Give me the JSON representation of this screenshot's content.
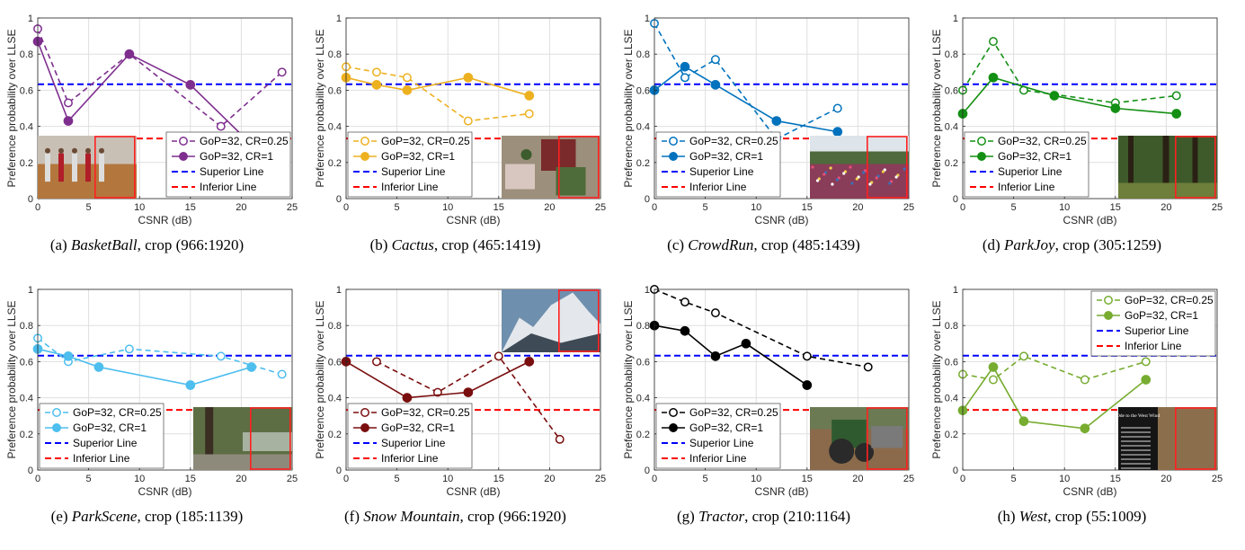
{
  "legend_labels": {
    "series_0.25": "GoP=32, CR=0.25",
    "series_1": "GoP=32, CR=1",
    "superior": "Superior Line",
    "inferior": "Inferior Line"
  },
  "chart_data": [
    {
      "type": "line",
      "caption_prefix": "(a) ",
      "caption_name": "BasketBall",
      "caption_suffix": ", crop (966:1920)",
      "xlabel": "CSNR (dB)",
      "ylabel": "Preference probability over LLSE",
      "xlim": [
        0,
        25
      ],
      "ylim": [
        0,
        1
      ],
      "xticks": [
        0,
        5,
        10,
        15,
        20,
        25
      ],
      "yticks": [
        0,
        0.2,
        0.4,
        0.6,
        0.8,
        1
      ],
      "color": "#7E2F8E",
      "grid": true,
      "legend_position": "bottom-right",
      "superior_line": 0.633,
      "inferior_line": 0.333,
      "series": [
        {
          "cr": "0.25",
          "x": [
            0,
            3,
            9,
            18,
            24
          ],
          "y": [
            0.94,
            0.53,
            0.8,
            0.4,
            0.7
          ]
        },
        {
          "cr": "1",
          "x": [
            0,
            3,
            9,
            15,
            21
          ],
          "y": [
            0.87,
            0.43,
            0.8,
            0.63,
            0.3
          ]
        }
      ],
      "thumb": {
        "scene": "basketball"
      }
    },
    {
      "type": "line",
      "caption_prefix": "(b) ",
      "caption_name": "Cactus",
      "caption_suffix": ", crop (465:1419)",
      "xlabel": "CSNR (dB)",
      "ylabel": "Preference probability over LLSE",
      "xlim": [
        0,
        25
      ],
      "ylim": [
        0,
        1
      ],
      "xticks": [
        0,
        5,
        10,
        15,
        20,
        25
      ],
      "yticks": [
        0,
        0.2,
        0.4,
        0.6,
        0.8,
        1
      ],
      "color": "#EDB120",
      "grid": true,
      "legend_position": "bottom-left",
      "superior_line": 0.633,
      "inferior_line": 0.333,
      "series": [
        {
          "cr": "0.25",
          "x": [
            0,
            3,
            6,
            12,
            18
          ],
          "y": [
            0.73,
            0.7,
            0.67,
            0.43,
            0.47
          ]
        },
        {
          "cr": "1",
          "x": [
            0,
            3,
            6,
            12,
            18
          ],
          "y": [
            0.67,
            0.63,
            0.6,
            0.67,
            0.57
          ]
        }
      ],
      "thumb": {
        "scene": "cactus"
      }
    },
    {
      "type": "line",
      "caption_prefix": "(c) ",
      "caption_name": "CrowdRun",
      "caption_suffix": ", crop (485:1439)",
      "xlabel": "CSNR (dB)",
      "ylabel": "Preference probability over LLSE",
      "xlim": [
        0,
        25
      ],
      "ylim": [
        0,
        1
      ],
      "xticks": [
        0,
        5,
        10,
        15,
        20,
        25
      ],
      "yticks": [
        0,
        0.2,
        0.4,
        0.6,
        0.8,
        1
      ],
      "color": "#0072BD",
      "grid": true,
      "legend_position": "bottom-left",
      "superior_line": 0.633,
      "inferior_line": 0.333,
      "series": [
        {
          "cr": "0.25",
          "x": [
            0,
            3,
            6,
            12,
            18
          ],
          "y": [
            0.97,
            0.67,
            0.77,
            0.33,
            0.5
          ]
        },
        {
          "cr": "1",
          "x": [
            0,
            3,
            6,
            12,
            18
          ],
          "y": [
            0.6,
            0.73,
            0.63,
            0.43,
            0.37
          ]
        }
      ],
      "thumb": {
        "scene": "crowdrun"
      }
    },
    {
      "type": "line",
      "caption_prefix": "(d) ",
      "caption_name": "ParkJoy",
      "caption_suffix": ", crop (305:1259)",
      "xlabel": "CSNR (dB)",
      "ylabel": "Preference probability over LLSE",
      "xlim": [
        0,
        25
      ],
      "ylim": [
        0,
        1
      ],
      "xticks": [
        0,
        5,
        10,
        15,
        20,
        25
      ],
      "yticks": [
        0,
        0.2,
        0.4,
        0.6,
        0.8,
        1
      ],
      "color": "#138F13",
      "grid": true,
      "legend_position": "bottom-left",
      "superior_line": 0.633,
      "inferior_line": 0.333,
      "series": [
        {
          "cr": "0.25",
          "x": [
            0,
            3,
            6,
            15,
            21
          ],
          "y": [
            0.6,
            0.87,
            0.6,
            0.53,
            0.57
          ]
        },
        {
          "cr": "1",
          "x": [
            0,
            3,
            9,
            15,
            21
          ],
          "y": [
            0.47,
            0.67,
            0.57,
            0.5,
            0.47
          ]
        }
      ],
      "thumb": {
        "scene": "parkjoy"
      }
    },
    {
      "type": "line",
      "caption_prefix": "(e) ",
      "caption_name": "ParkScene",
      "caption_suffix": ", crop (185:1139)",
      "xlabel": "CSNR (dB)",
      "ylabel": "Preference probability over LLSE",
      "xlim": [
        0,
        25
      ],
      "ylim": [
        0,
        1
      ],
      "xticks": [
        0,
        5,
        10,
        15,
        20,
        25
      ],
      "yticks": [
        0,
        0.2,
        0.4,
        0.6,
        0.8,
        1
      ],
      "color": "#4DBEEE",
      "grid": true,
      "legend_position": "bottom-left",
      "superior_line": 0.633,
      "inferior_line": 0.333,
      "series": [
        {
          "cr": "0.25",
          "x": [
            0,
            3,
            9,
            18,
            24
          ],
          "y": [
            0.73,
            0.6,
            0.67,
            0.63,
            0.53
          ]
        },
        {
          "cr": "1",
          "x": [
            0,
            3,
            6,
            15,
            21
          ],
          "y": [
            0.67,
            0.63,
            0.57,
            0.47,
            0.57
          ]
        }
      ],
      "thumb": {
        "scene": "parkscene"
      }
    },
    {
      "type": "line",
      "caption_prefix": "(f) ",
      "caption_name": "Snow Mountain",
      "caption_suffix": ", crop (966:1920)",
      "xlabel": "CSNR (dB)",
      "ylabel": "Preference probability over LLSE",
      "xlim": [
        0,
        25
      ],
      "ylim": [
        0,
        1
      ],
      "xticks": [
        0,
        5,
        10,
        15,
        20,
        25
      ],
      "yticks": [
        0,
        0.2,
        0.4,
        0.6,
        0.8,
        1
      ],
      "color": "#7A0E0E",
      "grid": true,
      "legend_position": "bottom-left",
      "superior_line": 0.633,
      "inferior_line": 0.333,
      "series": [
        {
          "cr": "0.25",
          "x": [
            3,
            9,
            15,
            21
          ],
          "y": [
            0.6,
            0.43,
            0.63,
            0.17
          ]
        },
        {
          "cr": "1",
          "x": [
            0,
            6,
            12,
            18
          ],
          "y": [
            0.6,
            0.4,
            0.43,
            0.6
          ]
        }
      ],
      "thumb": {
        "scene": "snowmountain"
      }
    },
    {
      "type": "line",
      "caption_prefix": "(g) ",
      "caption_name": "Tractor",
      "caption_suffix": ", crop (210:1164)",
      "xlabel": "CSNR (dB)",
      "ylabel": "Preference probability over LLSE",
      "xlim": [
        0,
        25
      ],
      "ylim": [
        0,
        1
      ],
      "xticks": [
        0,
        5,
        10,
        15,
        20,
        25
      ],
      "yticks": [
        0,
        0.2,
        0.4,
        0.6,
        0.8,
        1
      ],
      "color": "#000000",
      "grid": true,
      "legend_position": "bottom-left",
      "superior_line": 0.633,
      "inferior_line": 0.333,
      "series": [
        {
          "cr": "0.25",
          "x": [
            0,
            3,
            6,
            15,
            21
          ],
          "y": [
            1.0,
            0.93,
            0.87,
            0.63,
            0.57
          ]
        },
        {
          "cr": "1",
          "x": [
            0,
            3,
            6,
            9,
            15
          ],
          "y": [
            0.8,
            0.77,
            0.63,
            0.7,
            0.47
          ]
        }
      ],
      "thumb": {
        "scene": "tractor"
      }
    },
    {
      "type": "line",
      "caption_prefix": "(h) ",
      "caption_name": "West",
      "caption_suffix": ", crop (55:1009)",
      "xlabel": "CSNR (dB)",
      "ylabel": "Preference probability over LLSE",
      "xlim": [
        0,
        25
      ],
      "ylim": [
        0,
        1
      ],
      "xticks": [
        0,
        5,
        10,
        15,
        20,
        25
      ],
      "yticks": [
        0,
        0.2,
        0.4,
        0.6,
        0.8,
        1
      ],
      "color": "#77AC30",
      "grid": true,
      "legend_position": "top-right",
      "superior_line": 0.633,
      "inferior_line": 0.333,
      "series": [
        {
          "cr": "0.25",
          "x": [
            0,
            3,
            6,
            12,
            18
          ],
          "y": [
            0.53,
            0.5,
            0.63,
            0.5,
            0.6
          ]
        },
        {
          "cr": "1",
          "x": [
            0,
            3,
            6,
            12,
            18
          ],
          "y": [
            0.33,
            0.57,
            0.27,
            0.23,
            0.5
          ]
        }
      ],
      "thumb": {
        "scene": "west",
        "title": "Ode to the West Wind"
      }
    }
  ]
}
